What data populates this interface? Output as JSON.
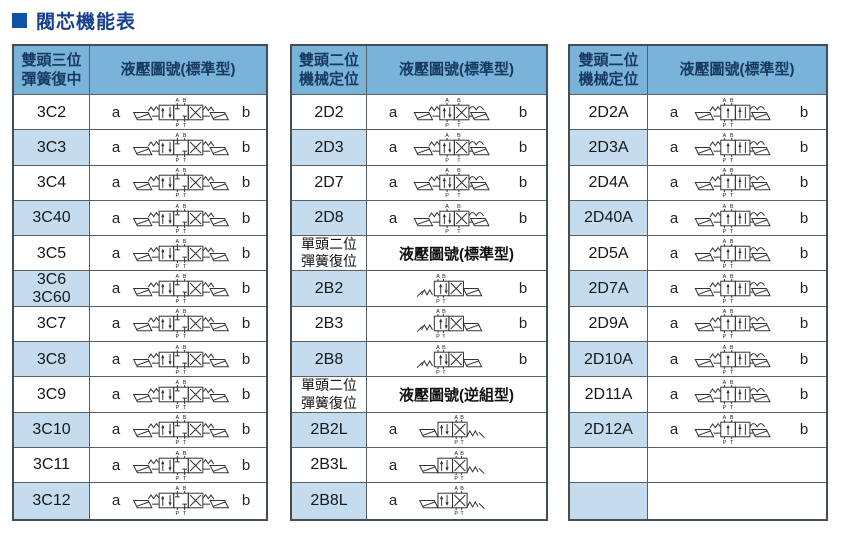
{
  "page_title": "閥芯機能表",
  "ports": {
    "a_top": "A",
    "b_top": "B",
    "p_bottom": "P",
    "t_bottom": "T"
  },
  "side_labels": {
    "a": "a",
    "b": "b"
  },
  "colors": {
    "title_square": "#0d55a4",
    "title_text": "#17418c",
    "header_bg": "#7ab3da",
    "header_text": "#17395f",
    "alt_row_bg": "#c4dcee",
    "border": "#565e66"
  },
  "tables": [
    {
      "name": "double-head-three-position",
      "rows": [
        {
          "type": "header",
          "col1_lines": [
            "雙頭三位",
            "彈簧復中"
          ],
          "col2": "液壓圖號(標準型)"
        },
        {
          "type": "row",
          "code_lines": [
            "3C2"
          ],
          "a": "a",
          "b": "b",
          "diagram": "valve-3pos"
        },
        {
          "type": "row",
          "code_lines": [
            "3C3"
          ],
          "a": "a",
          "b": "b",
          "diagram": "valve-3pos"
        },
        {
          "type": "row",
          "code_lines": [
            "3C4"
          ],
          "a": "a",
          "b": "b",
          "diagram": "valve-3pos"
        },
        {
          "type": "row",
          "code_lines": [
            "3C40"
          ],
          "a": "a",
          "b": "b",
          "diagram": "valve-3pos"
        },
        {
          "type": "row",
          "code_lines": [
            "3C5"
          ],
          "a": "a",
          "b": "b",
          "diagram": "valve-3pos"
        },
        {
          "type": "row",
          "code_lines": [
            "3C6",
            "3C60"
          ],
          "a": "a",
          "b": "b",
          "diagram": "valve-3pos"
        },
        {
          "type": "row",
          "code_lines": [
            "3C7"
          ],
          "a": "a",
          "b": "b",
          "diagram": "valve-3pos"
        },
        {
          "type": "row",
          "code_lines": [
            "3C8"
          ],
          "a": "a",
          "b": "b",
          "diagram": "valve-3pos"
        },
        {
          "type": "row",
          "code_lines": [
            "3C9"
          ],
          "a": "a",
          "b": "b",
          "diagram": "valve-3pos"
        },
        {
          "type": "row",
          "code_lines": [
            "3C10"
          ],
          "a": "a",
          "b": "b",
          "diagram": "valve-3pos"
        },
        {
          "type": "row",
          "code_lines": [
            "3C11"
          ],
          "a": "a",
          "b": "b",
          "diagram": "valve-3pos"
        },
        {
          "type": "row",
          "code_lines": [
            "3C12"
          ],
          "a": "a",
          "b": "b",
          "diagram": "valve-3pos"
        }
      ]
    },
    {
      "name": "double-head-two-position-and-single-head",
      "rows": [
        {
          "type": "header",
          "col1_lines": [
            "雙頭二位",
            "機械定位"
          ],
          "col2": "液壓圖號(標準型)"
        },
        {
          "type": "row",
          "code_lines": [
            "2D2"
          ],
          "a": "a",
          "b": "b",
          "diagram": "valve-2d"
        },
        {
          "type": "row",
          "code_lines": [
            "2D3"
          ],
          "a": "a",
          "b": "b",
          "diagram": "valve-2d"
        },
        {
          "type": "row",
          "code_lines": [
            "2D7"
          ],
          "a": "a",
          "b": "b",
          "diagram": "valve-2d"
        },
        {
          "type": "row",
          "code_lines": [
            "2D8"
          ],
          "a": "a",
          "b": "b",
          "diagram": "valve-2d"
        },
        {
          "type": "subheader",
          "col1_lines": [
            "單頭二位",
            "彈簧復位"
          ],
          "col2": "液壓圖號(標準型)"
        },
        {
          "type": "row",
          "code_lines": [
            "2B2"
          ],
          "a": "",
          "b": "b",
          "diagram": "valve-2b"
        },
        {
          "type": "row",
          "code_lines": [
            "2B3"
          ],
          "a": "",
          "b": "b",
          "diagram": "valve-2b"
        },
        {
          "type": "row",
          "code_lines": [
            "2B8"
          ],
          "a": "",
          "b": "b",
          "diagram": "valve-2b"
        },
        {
          "type": "subheader",
          "col1_lines": [
            "單頭二位",
            "彈簧復位"
          ],
          "col2": "液壓圖號(逆組型)"
        },
        {
          "type": "row",
          "code_lines": [
            "2B2L"
          ],
          "a": "a",
          "b": "",
          "diagram": "valve-2bl"
        },
        {
          "type": "row",
          "code_lines": [
            "2B3L"
          ],
          "a": "a",
          "b": "",
          "diagram": "valve-2bl"
        },
        {
          "type": "row",
          "code_lines": [
            "2B8L"
          ],
          "a": "a",
          "b": "",
          "diagram": "valve-2bl"
        }
      ]
    },
    {
      "name": "double-head-two-position-a-series",
      "rows": [
        {
          "type": "header",
          "col1_lines": [
            "雙頭二位",
            "機械定位"
          ],
          "col2": "液壓圖號(標準型)"
        },
        {
          "type": "row",
          "code_lines": [
            "2D2A"
          ],
          "a": "a",
          "b": "b",
          "diagram": "valve-2da"
        },
        {
          "type": "row",
          "code_lines": [
            "2D3A"
          ],
          "a": "a",
          "b": "b",
          "diagram": "valve-2da"
        },
        {
          "type": "row",
          "code_lines": [
            "2D4A"
          ],
          "a": "a",
          "b": "b",
          "diagram": "valve-2da"
        },
        {
          "type": "row",
          "code_lines": [
            "2D40A"
          ],
          "a": "a",
          "b": "b",
          "diagram": "valve-2da"
        },
        {
          "type": "row",
          "code_lines": [
            "2D5A"
          ],
          "a": "a",
          "b": "b",
          "diagram": "valve-2da"
        },
        {
          "type": "row",
          "code_lines": [
            "2D7A"
          ],
          "a": "a",
          "b": "b",
          "diagram": "valve-2da"
        },
        {
          "type": "row",
          "code_lines": [
            "2D9A"
          ],
          "a": "a",
          "b": "b",
          "diagram": "valve-2da"
        },
        {
          "type": "row",
          "code_lines": [
            "2D10A"
          ],
          "a": "a",
          "b": "b",
          "diagram": "valve-2da"
        },
        {
          "type": "row",
          "code_lines": [
            "2D11A"
          ],
          "a": "a",
          "b": "b",
          "diagram": "valve-2da"
        },
        {
          "type": "row",
          "code_lines": [
            "2D12A"
          ],
          "a": "a",
          "b": "b",
          "diagram": "valve-2da"
        },
        {
          "type": "empty"
        },
        {
          "type": "empty"
        }
      ]
    }
  ]
}
